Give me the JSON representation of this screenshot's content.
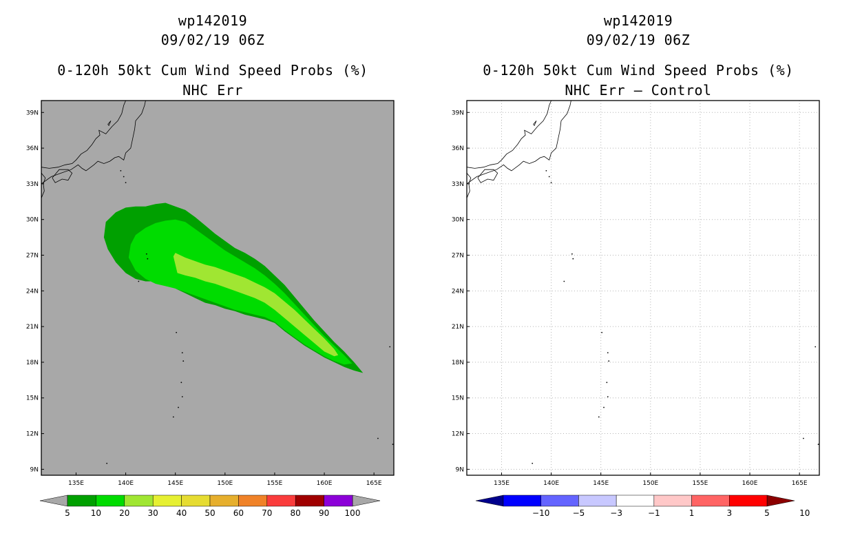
{
  "chart_data": [
    {
      "type": "heatmap",
      "storm_id": "wp142019",
      "datetime": "09/02/19 06Z",
      "title": "0-120h 50kt Cum Wind Speed Probs (%)",
      "subtitle": "NHC Err",
      "background": "#a8a8a8",
      "xlim": [
        131.5,
        167
      ],
      "ylim": [
        8.5,
        40
      ],
      "x_ticks": [
        "135E",
        "140E",
        "145E",
        "150E",
        "155E",
        "160E",
        "165E"
      ],
      "x_tick_values": [
        135,
        140,
        145,
        150,
        155,
        160,
        165
      ],
      "y_ticks": [
        "9N",
        "12N",
        "15N",
        "18N",
        "21N",
        "24N",
        "27N",
        "30N",
        "33N",
        "36N",
        "39N"
      ],
      "y_tick_values": [
        9,
        12,
        15,
        18,
        21,
        24,
        27,
        30,
        33,
        36,
        39
      ],
      "grid": false,
      "colorbar": {
        "labels": [
          "5",
          "10",
          "20",
          "30",
          "40",
          "50",
          "60",
          "70",
          "80",
          "90",
          "100"
        ],
        "colors": [
          "#00a000",
          "#00dc00",
          "#a0e632",
          "#e6f032",
          "#e6dc32",
          "#e6af2d",
          "#f08228",
          "#fa3c3c",
          "#a00000",
          "#8c00d8"
        ],
        "under_color": "#a8a8a8",
        "over_color": "#a8a8a8"
      },
      "contours": [
        {
          "level": "5-10",
          "color": "#00a000",
          "lon": [
            146,
            147,
            148,
            149,
            150,
            151,
            152,
            153,
            154,
            155,
            156,
            157,
            158,
            159,
            160,
            161,
            162,
            163,
            163.9,
            163,
            162,
            161,
            160,
            159,
            158,
            157,
            156,
            155,
            154,
            153,
            152,
            151,
            150,
            149,
            148,
            147,
            146,
            145,
            144,
            143,
            142,
            141,
            140,
            139,
            138.2,
            137.8,
            138,
            139,
            140,
            141,
            142,
            143,
            144,
            145
          ],
          "lat": [
            30.8,
            30.2,
            29.5,
            28.8,
            28.2,
            27.6,
            27.2,
            26.7,
            26.1,
            25.3,
            24.5,
            23.5,
            22.5,
            21.5,
            20.6,
            19.7,
            18.9,
            18,
            17.1,
            17.3,
            17.6,
            18,
            18.4,
            18.9,
            19.4,
            20,
            20.6,
            21.3,
            21.6,
            21.8,
            22,
            22.3,
            22.5,
            22.8,
            23,
            23.4,
            23.8,
            24.2,
            24.5,
            24.8,
            24.8,
            25,
            25.5,
            26.4,
            27.5,
            28.5,
            29.8,
            30.6,
            31,
            31.1,
            31.1,
            31.3,
            31.4,
            31.1
          ]
        },
        {
          "level": "10-20",
          "color": "#00dc00",
          "lon": [
            146,
            147,
            148,
            149,
            150,
            151,
            152,
            153,
            154,
            155,
            156,
            157,
            158,
            159,
            160,
            161,
            162,
            162.8,
            162,
            161,
            160,
            159,
            158,
            157,
            156,
            155,
            154,
            153,
            152,
            151,
            150,
            149,
            148,
            147,
            146,
            145,
            144,
            143,
            142,
            141,
            140.3,
            140.5,
            141,
            142,
            143,
            144,
            145
          ],
          "lat": [
            29.8,
            29.2,
            28.6,
            28,
            27.4,
            26.9,
            26.4,
            25.9,
            25.3,
            24.6,
            23.8,
            22.9,
            22,
            21.1,
            20.2,
            19.4,
            18.6,
            17.9,
            17.8,
            18.1,
            18.5,
            19,
            19.5,
            20.1,
            20.7,
            21.4,
            21.8,
            22,
            22.2,
            22.4,
            22.7,
            23,
            23.3,
            23.6,
            23.9,
            24.2,
            24.4,
            24.6,
            25,
            25.7,
            26.8,
            27.9,
            28.7,
            29.3,
            29.7,
            29.9,
            30
          ]
        },
        {
          "level": "20-30",
          "color": "#a0e632",
          "lon": [
            145,
            146,
            147,
            148,
            149,
            150,
            151,
            152,
            153,
            154,
            155,
            156,
            157,
            158,
            159,
            160,
            161,
            161.4,
            161,
            160,
            159,
            158,
            157,
            156,
            155,
            154,
            153,
            152,
            151,
            150,
            149,
            148,
            147,
            146,
            145.2,
            145,
            144.8
          ],
          "lat": [
            27.2,
            26.8,
            26.5,
            26.2,
            26,
            25.7,
            25.4,
            25.1,
            24.7,
            24.3,
            23.8,
            23.1,
            22.4,
            21.6,
            20.8,
            20,
            19.1,
            18.6,
            18.5,
            18.9,
            19.6,
            20.3,
            21,
            21.7,
            22.4,
            23,
            23.4,
            23.7,
            24,
            24.3,
            24.6,
            24.8,
            25.1,
            25.3,
            25.5,
            26.2,
            26.9
          ]
        }
      ]
    },
    {
      "type": "heatmap",
      "storm_id": "wp142019",
      "datetime": "09/02/19 06Z",
      "title": "0-120h 50kt Cum Wind Speed Probs (%)",
      "subtitle": "NHC Err — Control",
      "background": "#ffffff",
      "xlim": [
        131.5,
        167
      ],
      "ylim": [
        8.5,
        40
      ],
      "x_ticks": [
        "135E",
        "140E",
        "145E",
        "150E",
        "155E",
        "160E",
        "165E"
      ],
      "x_tick_values": [
        135,
        140,
        145,
        150,
        155,
        160,
        165
      ],
      "y_ticks": [
        "9N",
        "12N",
        "15N",
        "18N",
        "21N",
        "24N",
        "27N",
        "30N",
        "33N",
        "36N",
        "39N"
      ],
      "y_tick_values": [
        9,
        12,
        15,
        18,
        21,
        24,
        27,
        30,
        33,
        36,
        39
      ],
      "grid": true,
      "colorbar": {
        "labels": [
          "−10",
          "−5",
          "−3",
          "−1",
          "1",
          "3",
          "5",
          "10"
        ],
        "colors": [
          "#0000ff",
          "#6464ff",
          "#c8c8ff",
          "#ffffff",
          "#ffc8c8",
          "#ff6464",
          "#ff0000"
        ],
        "under_color": "#00008c",
        "over_color": "#8c0000"
      },
      "contours": []
    }
  ]
}
